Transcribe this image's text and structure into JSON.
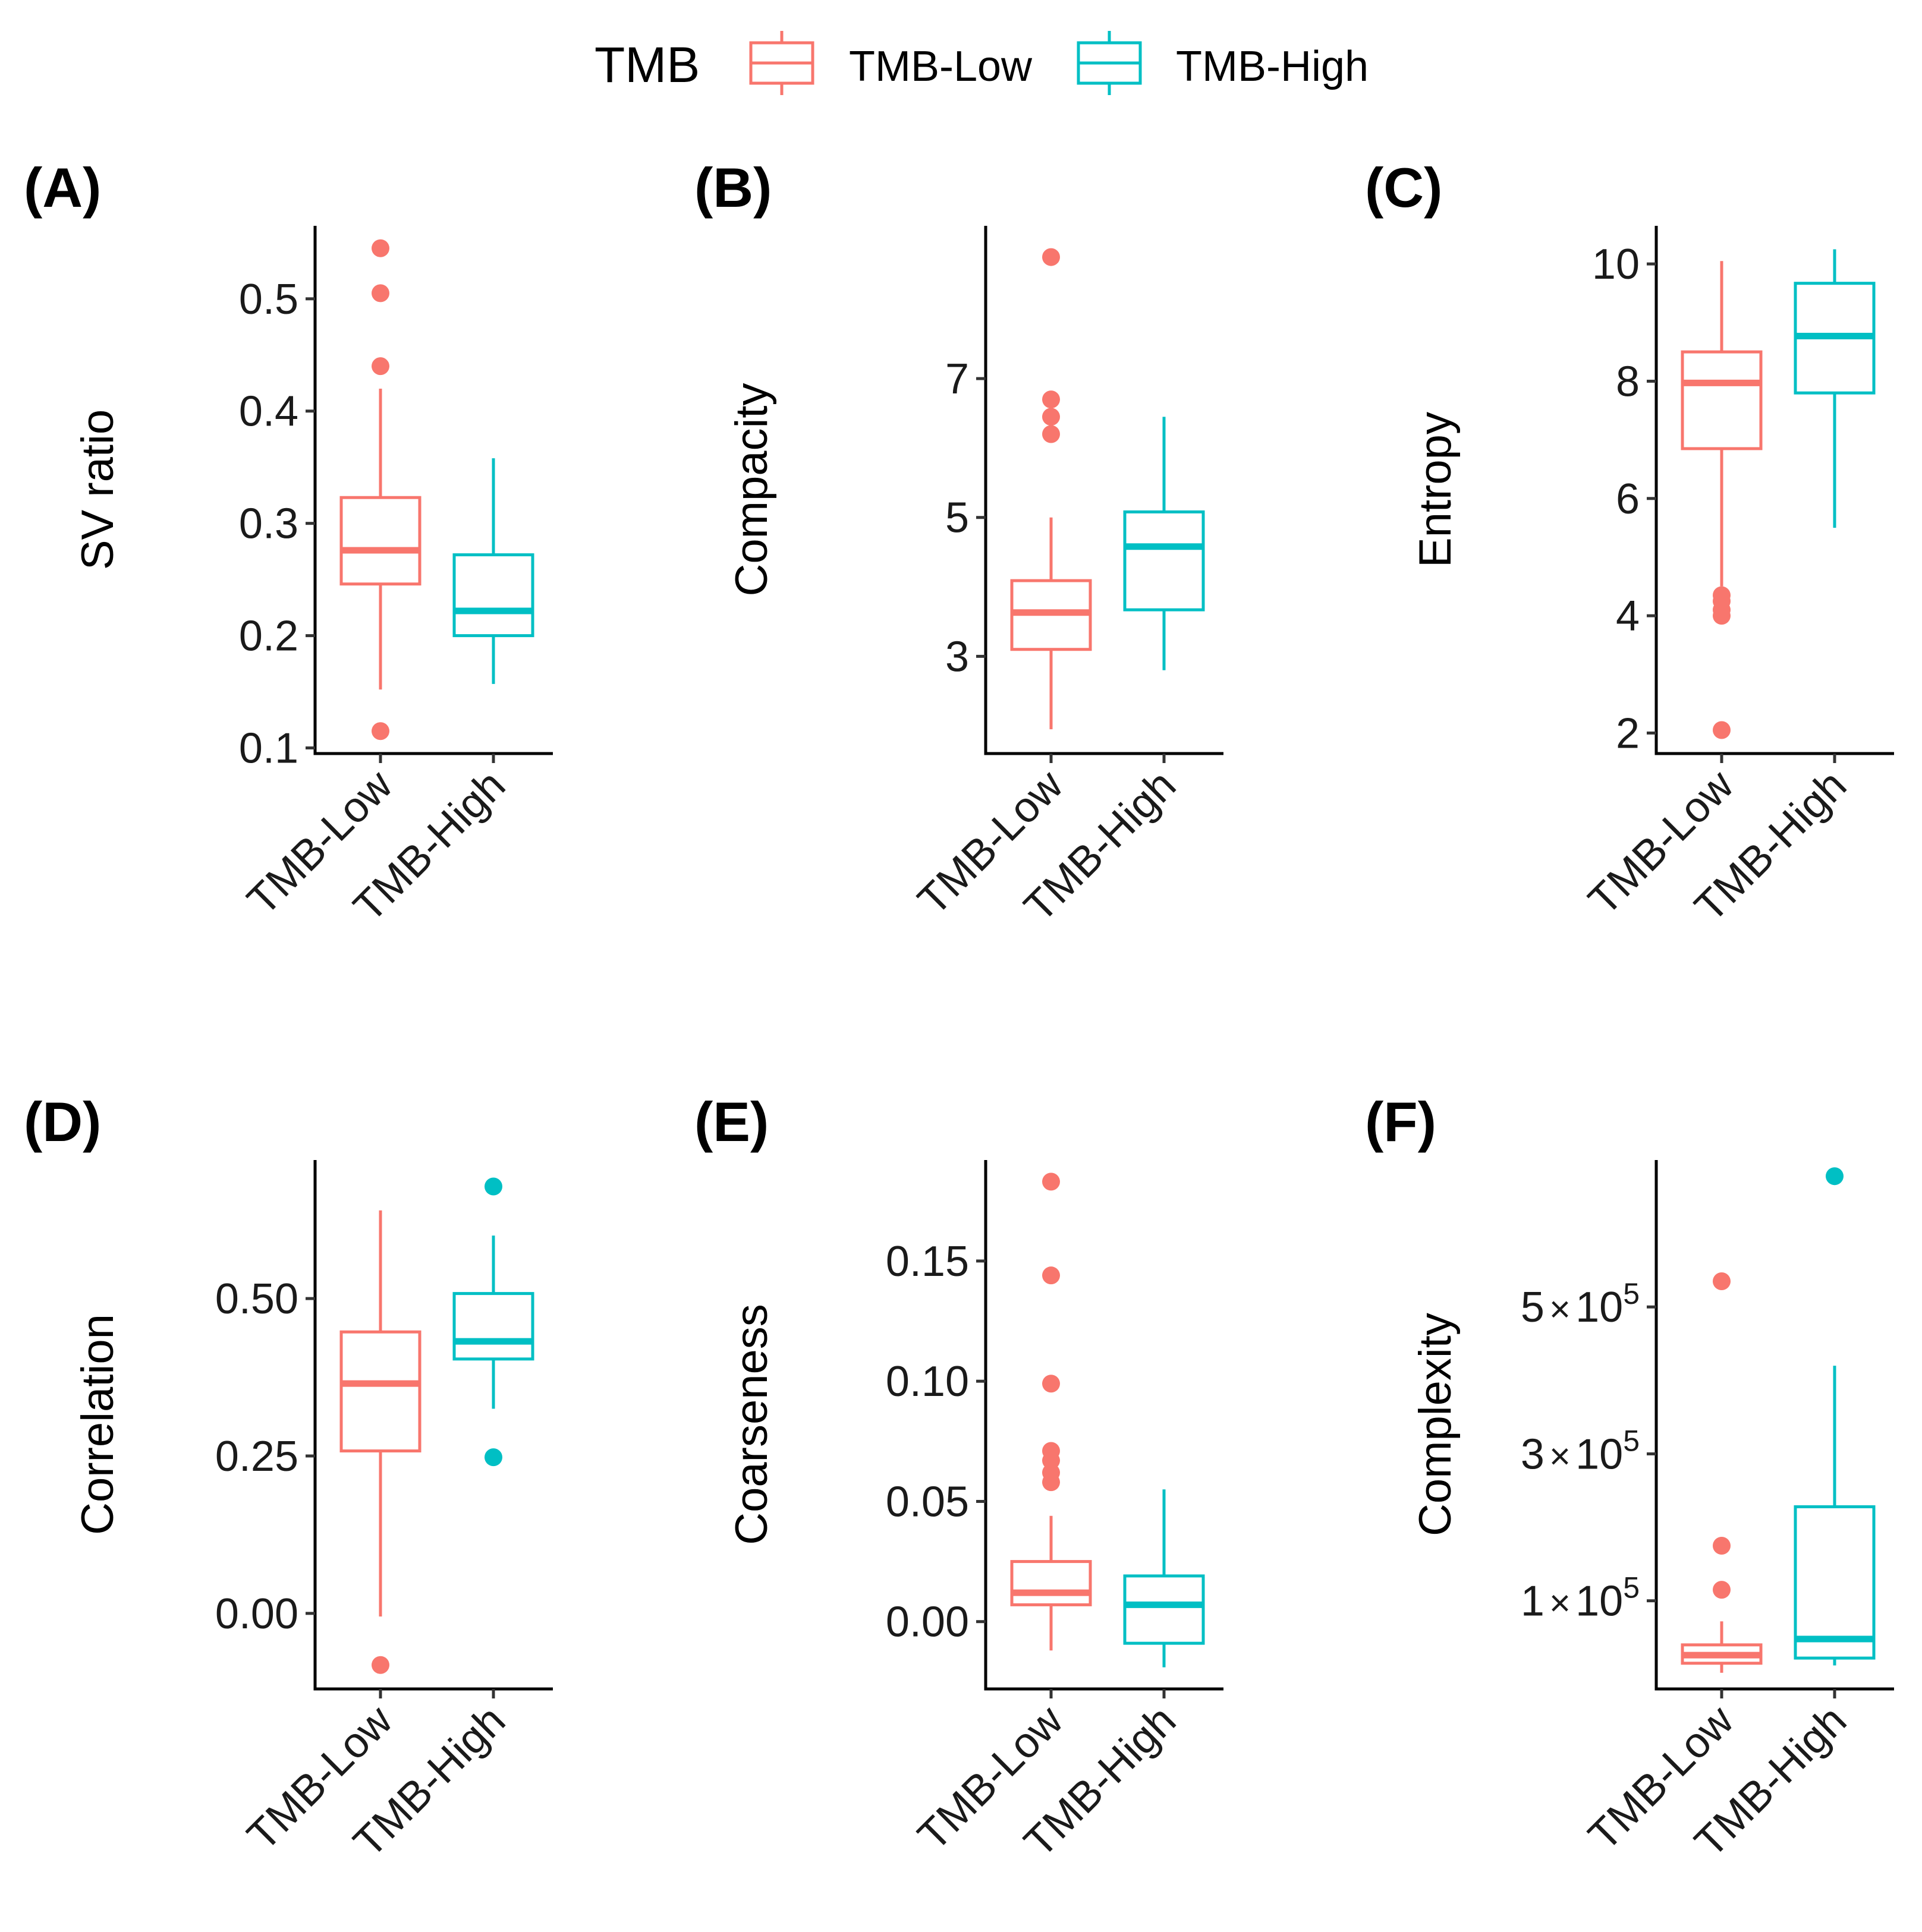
{
  "legend": {
    "title": "TMB",
    "entries": [
      {
        "label": "TMB-Low",
        "color": "#F8766D"
      },
      {
        "label": "TMB-High",
        "color": "#00BFC4"
      }
    ]
  },
  "chart_data": [
    {
      "panel": "(A)",
      "type": "boxplot",
      "ylabel": "SV ratio",
      "categories": [
        "TMB-Low",
        "TMB-High"
      ],
      "ylim": [
        0.095,
        0.565
      ],
      "yticks": [
        0.1,
        0.2,
        0.3,
        0.4,
        0.5
      ],
      "yticklabels": [
        "0.1",
        "0.2",
        "0.3",
        "0.4",
        "0.5"
      ],
      "boxes": [
        {
          "name": "TMB-Low",
          "whisker_low": 0.152,
          "q1": 0.246,
          "median": 0.276,
          "q3": 0.323,
          "whisker_high": 0.42,
          "outliers": [
            0.545,
            0.505,
            0.44,
            0.115
          ]
        },
        {
          "name": "TMB-High",
          "whisker_low": 0.157,
          "q1": 0.2,
          "median": 0.222,
          "q3": 0.272,
          "whisker_high": 0.358,
          "outliers": []
        }
      ]
    },
    {
      "panel": "(B)",
      "type": "boxplot",
      "ylabel": "Compacity",
      "categories": [
        "TMB-Low",
        "TMB-High"
      ],
      "ylim": [
        1.6,
        9.2
      ],
      "yticks": [
        3,
        5,
        7
      ],
      "yticklabels": [
        "3",
        "5",
        "7"
      ],
      "boxes": [
        {
          "name": "TMB-Low",
          "whisker_low": 1.95,
          "q1": 3.1,
          "median": 3.63,
          "q3": 4.09,
          "whisker_high": 5.0,
          "outliers": [
            8.75,
            6.7,
            6.45,
            6.2
          ]
        },
        {
          "name": "TMB-High",
          "whisker_low": 2.8,
          "q1": 3.67,
          "median": 4.58,
          "q3": 5.08,
          "whisker_high": 6.45,
          "outliers": []
        }
      ]
    },
    {
      "panel": "(C)",
      "type": "boxplot",
      "ylabel": "Entropy",
      "categories": [
        "TMB-Low",
        "TMB-High"
      ],
      "ylim": [
        1.65,
        10.65
      ],
      "yticks": [
        2,
        4,
        6,
        8,
        10
      ],
      "yticklabels": [
        "2",
        "4",
        "6",
        "8",
        "10"
      ],
      "boxes": [
        {
          "name": "TMB-Low",
          "whisker_low": 4.5,
          "q1": 6.85,
          "median": 7.97,
          "q3": 8.5,
          "whisker_high": 10.05,
          "outliers": [
            4.35,
            4.25,
            4.1,
            4.0,
            2.05
          ]
        },
        {
          "name": "TMB-High",
          "whisker_low": 5.5,
          "q1": 7.8,
          "median": 8.77,
          "q3": 9.67,
          "whisker_high": 10.25,
          "outliers": []
        }
      ]
    },
    {
      "panel": "(D)",
      "type": "boxplot",
      "ylabel": "Correlation",
      "categories": [
        "TMB-Low",
        "TMB-High"
      ],
      "ylim": [
        -0.12,
        0.72
      ],
      "yticks": [
        0.0,
        0.25,
        0.5
      ],
      "yticklabels": [
        "0.00",
        "0.25",
        "0.50"
      ],
      "boxes": [
        {
          "name": "TMB-Low",
          "whisker_low": -0.005,
          "q1": 0.258,
          "median": 0.365,
          "q3": 0.447,
          "whisker_high": 0.64,
          "outliers": [
            -0.082
          ]
        },
        {
          "name": "TMB-High",
          "whisker_low": 0.325,
          "q1": 0.404,
          "median": 0.432,
          "q3": 0.508,
          "whisker_high": 0.6,
          "outliers": [
            0.678,
            0.248
          ]
        }
      ]
    },
    {
      "panel": "(E)",
      "type": "boxplot",
      "ylabel": "Coarseness",
      "categories": [
        "TMB-Low",
        "TMB-High"
      ],
      "ylim": [
        -0.028,
        0.192
      ],
      "yticks": [
        0.0,
        0.05,
        0.1,
        0.15
      ],
      "yticklabels": [
        "0.00",
        "0.05",
        "0.10",
        "0.15"
      ],
      "boxes": [
        {
          "name": "TMB-Low",
          "whisker_low": -0.012,
          "q1": 0.007,
          "median": 0.012,
          "q3": 0.025,
          "whisker_high": 0.044,
          "outliers": [
            0.183,
            0.144,
            0.099,
            0.071,
            0.067,
            0.062,
            0.058
          ]
        },
        {
          "name": "TMB-High",
          "whisker_low": -0.019,
          "q1": -0.009,
          "median": 0.007,
          "q3": 0.019,
          "whisker_high": 0.055,
          "outliers": []
        }
      ]
    },
    {
      "panel": "(F)",
      "type": "boxplot",
      "ylabel": "Complexity",
      "categories": [
        "TMB-Low",
        "TMB-High"
      ],
      "ylim": [
        -20000,
        700000
      ],
      "yticks": [
        100000,
        300000,
        500000
      ],
      "yticklabels": [
        {
          "coef": "1",
          "exp": "5"
        },
        {
          "coef": "3",
          "exp": "5"
        },
        {
          "coef": "5",
          "exp": "5"
        }
      ],
      "boxes": [
        {
          "name": "TMB-Low",
          "whisker_low": 2000,
          "q1": 15000,
          "median": 26000,
          "q3": 40000,
          "whisker_high": 72000,
          "outliers": [
            535000,
            175000,
            115000
          ]
        },
        {
          "name": "TMB-High",
          "whisker_low": 12000,
          "q1": 22000,
          "median": 48000,
          "q3": 228000,
          "whisker_high": 420000,
          "outliers": [
            678000
          ]
        }
      ]
    }
  ]
}
